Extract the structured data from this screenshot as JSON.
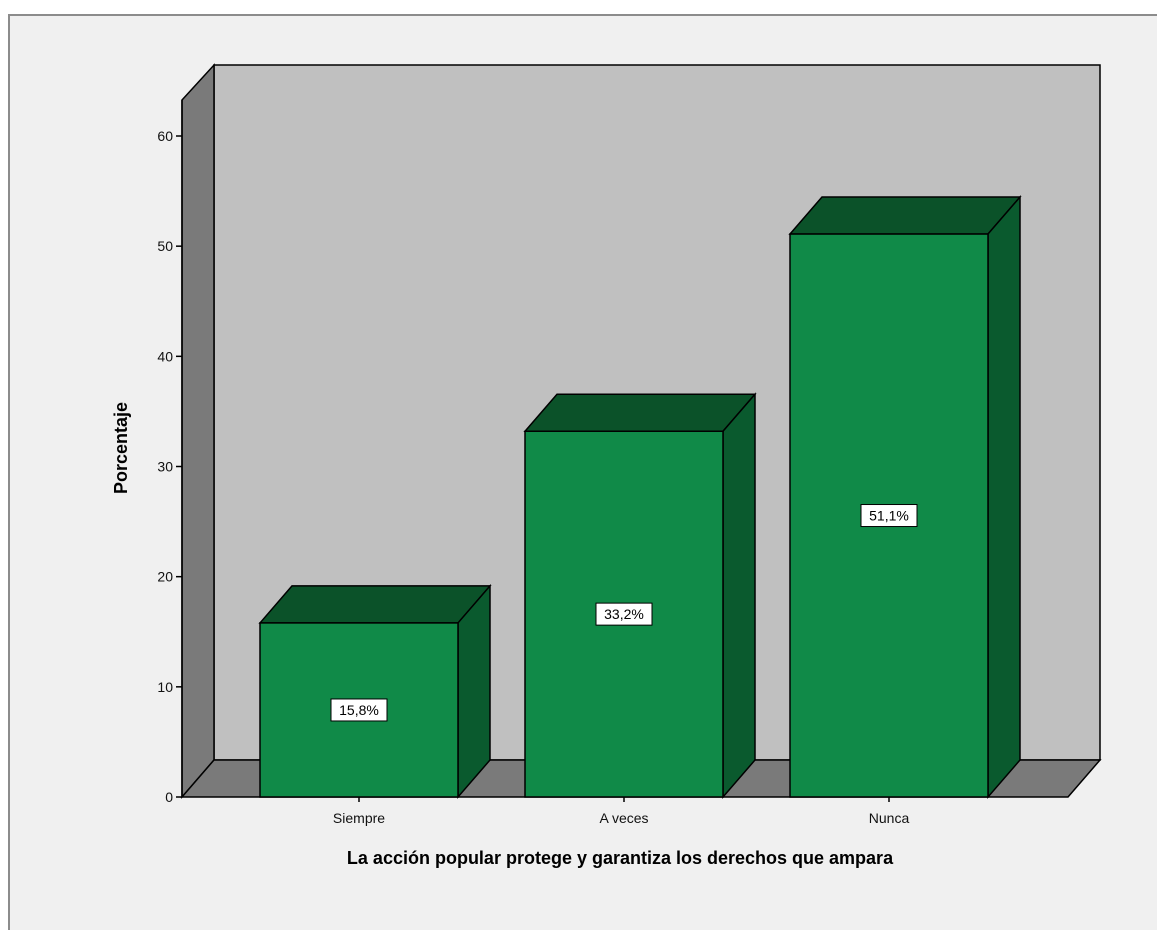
{
  "chart_data": {
    "type": "bar",
    "style": "3d",
    "categories": [
      "Siempre",
      "A veces",
      "Nunca"
    ],
    "values": [
      15.8,
      33.2,
      51.1
    ],
    "data_labels": [
      "15,8%",
      "33,2%",
      "51,1%"
    ],
    "xlabel": "La acción popular protege y garantiza los derechos que ampara",
    "ylabel": "Porcentaje",
    "ylim": [
      0,
      60
    ],
    "yticks": [
      0,
      10,
      20,
      30,
      40,
      50,
      60
    ],
    "ytick_labels": [
      "0",
      "10",
      "20",
      "30",
      "40",
      "50",
      "60"
    ],
    "grid": false,
    "legend": "none",
    "colors": {
      "bar_front": "#108a48",
      "bar_side": "#0a5a2e",
      "bar_top": "#0b5229",
      "back_wall": "#c0c0c0",
      "side_wall": "#7a7a7a",
      "floor": "#7a7a7a",
      "background": "#f0f0f0"
    }
  }
}
